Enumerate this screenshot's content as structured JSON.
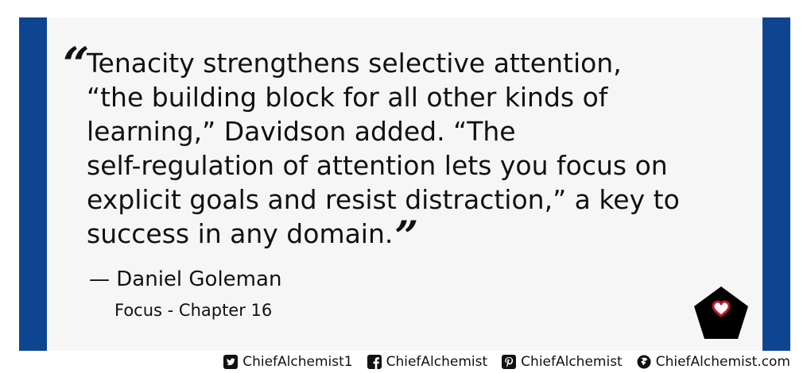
{
  "quote": {
    "lines": [
      "Tenacity strengthens selective attention,",
      "“the building block for all other kinds of",
      "learning,” Davidson added. “The",
      "self-regulation of attention lets you focus on",
      "explicit goals and resist distraction,” a key to",
      "success in any domain."
    ],
    "open_mark": "“",
    "close_mark": "”",
    "author": "— Daniel Goleman",
    "source": "Focus - Chapter 16"
  },
  "footer": {
    "twitter": "ChiefAlchemist1",
    "facebook": "ChiefAlchemist",
    "pinterest": "ChiefAlchemist",
    "website": "ChiefAlchemist.com"
  },
  "icons": {
    "twitter": "twitter-icon",
    "facebook": "facebook-icon",
    "pinterest": "pinterest-icon",
    "website": "globe-icon",
    "logo": "pentagon-heart-logo"
  },
  "colors": {
    "frame": "#0d4591",
    "panel": "#f6f6f6",
    "text": "#111111",
    "heart": "#c0182b"
  }
}
